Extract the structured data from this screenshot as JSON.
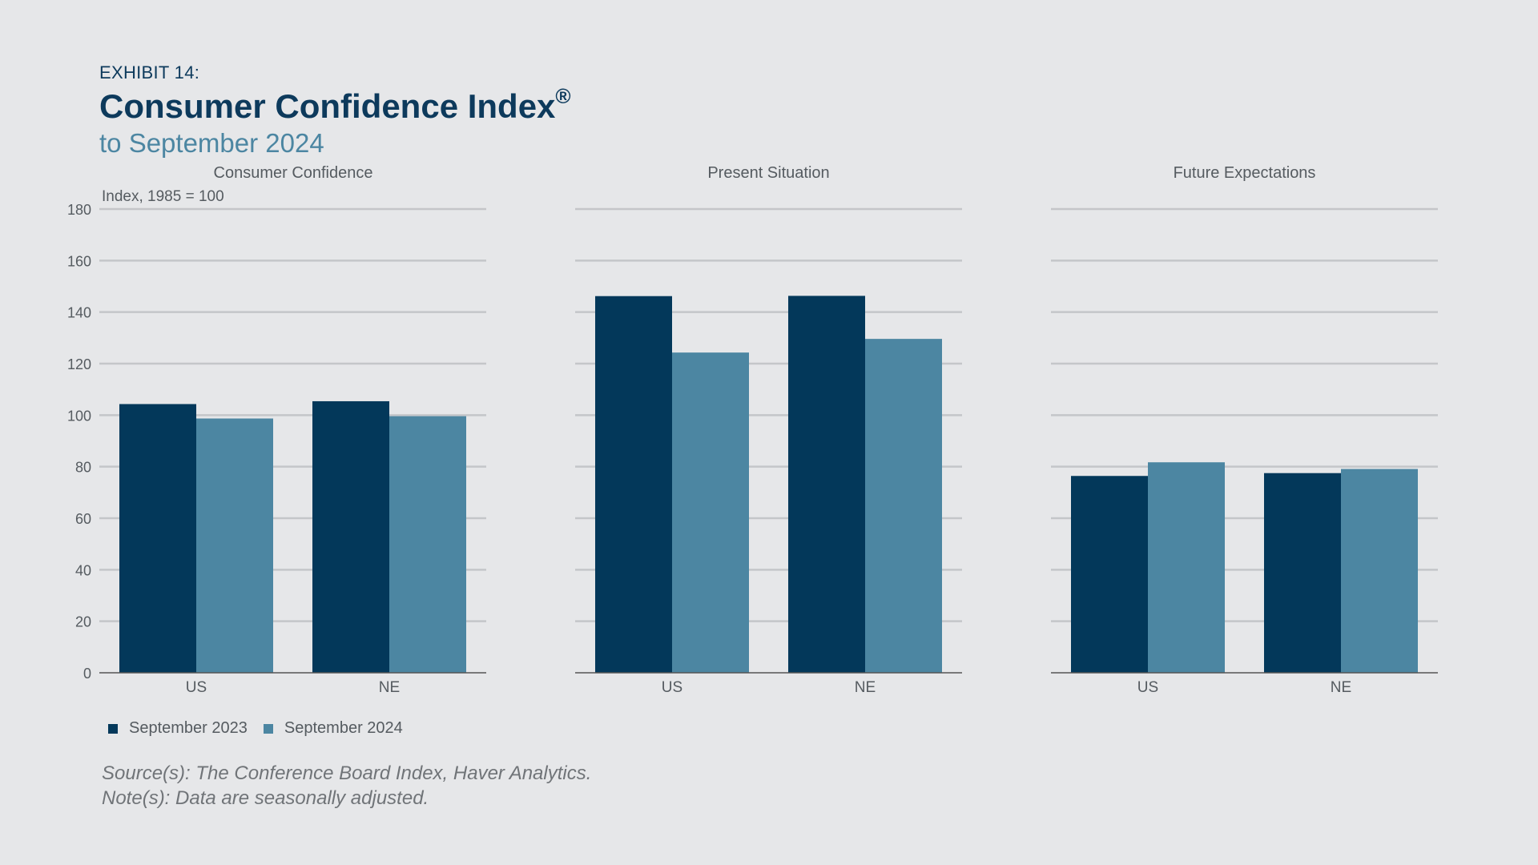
{
  "header": {
    "exhibit": "EXHIBIT 14:",
    "title": "Consumer Confidence Index",
    "title_mark": "®",
    "subtitle": "to September 2024"
  },
  "legend": {
    "items": [
      {
        "label": "September 2023",
        "color": "#03385a"
      },
      {
        "label": "September 2024",
        "color": "#4c86a2"
      }
    ]
  },
  "footer": {
    "source": "Source(s): The Conference Board Index, Haver Analytics.",
    "note": "Note(s): Data are seasonally adjusted."
  },
  "colors": {
    "background": "#e6e7e9",
    "gridline": "#c4c6c9",
    "axis": "#555555",
    "text": "#555b60"
  },
  "chart_data": [
    {
      "type": "bar",
      "title": "Consumer Confidence",
      "ylabel": "Index, 1985 = 100",
      "ylim": [
        0,
        180
      ],
      "yticks": [
        0,
        20,
        40,
        60,
        80,
        100,
        120,
        140,
        160,
        180
      ],
      "categories": [
        "US",
        "NE"
      ],
      "grid": true,
      "series": [
        {
          "name": "September 2023",
          "values": [
            104.3,
            105.4
          ]
        },
        {
          "name": "September 2024",
          "values": [
            98.7,
            99.6
          ]
        }
      ]
    },
    {
      "type": "bar",
      "title": "Present Situation",
      "ylim": [
        0,
        180
      ],
      "categories": [
        "US",
        "NE"
      ],
      "grid": true,
      "series": [
        {
          "name": "September 2023",
          "values": [
            146.2,
            146.3
          ]
        },
        {
          "name": "September 2024",
          "values": [
            124.3,
            129.6
          ]
        }
      ]
    },
    {
      "type": "bar",
      "title": "Future Expectations",
      "ylim": [
        0,
        180
      ],
      "categories": [
        "US",
        "NE"
      ],
      "grid": true,
      "series": [
        {
          "name": "September 2023",
          "values": [
            76.4,
            77.5
          ]
        },
        {
          "name": "September 2024",
          "values": [
            81.7,
            79.1
          ]
        }
      ]
    }
  ]
}
